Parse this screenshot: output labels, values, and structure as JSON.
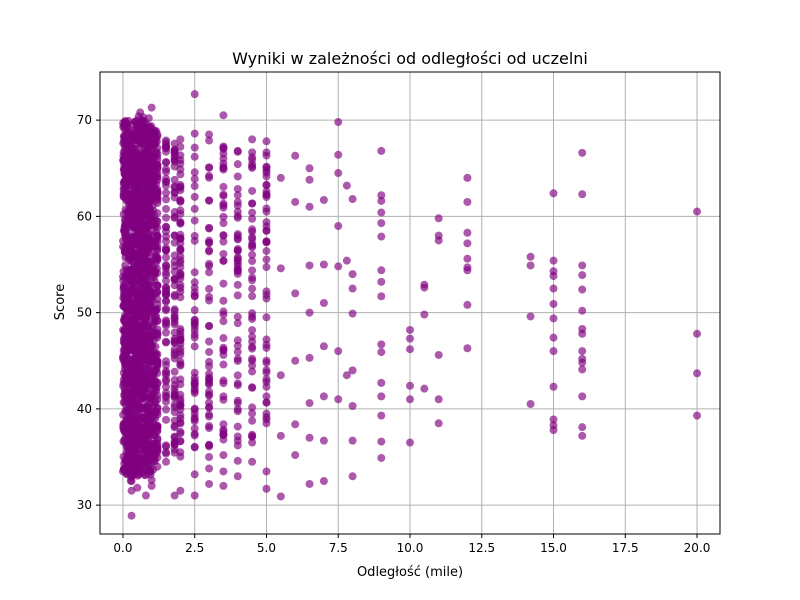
{
  "chart_data": {
    "type": "scatter",
    "title": "Wyniki w zależności od odległości od uczelni",
    "xlabel": "Odległość (mile)",
    "ylabel": "Score",
    "xlim": [
      -0.8,
      20.8
    ],
    "ylim": [
      27,
      75
    ],
    "xticks": [
      0.0,
      2.5,
      5.0,
      7.5,
      10.0,
      12.5,
      15.0,
      17.5,
      20.0
    ],
    "xtick_labels": [
      "0.0",
      "2.5",
      "5.0",
      "7.5",
      "10.0",
      "12.5",
      "15.0",
      "17.5",
      "20.0"
    ],
    "yticks": [
      30,
      40,
      50,
      60,
      70
    ],
    "ytick_labels": [
      "30",
      "40",
      "50",
      "60",
      "70"
    ],
    "grid": true,
    "point_color": "#800080",
    "point_opacity": 0.65,
    "note": "approx. 4700 observations; dense band at x 0-5 covering roughly 33-70, see series.dense_range",
    "series": [
      {
        "dense_range": [
          {
            "x": 0.0,
            "y_min": 33.5,
            "y_max": 70.0
          },
          {
            "x": 0.1,
            "y_min": 33.0,
            "y_max": 70.0
          },
          {
            "x": 0.2,
            "y_min": 32.5,
            "y_max": 69.5
          },
          {
            "x": 0.3,
            "y_min": 33.0,
            "y_max": 70.0
          },
          {
            "x": 0.4,
            "y_min": 33.5,
            "y_max": 70.0
          },
          {
            "x": 0.5,
            "y_min": 33.0,
            "y_max": 70.5
          },
          {
            "x": 0.6,
            "y_min": 33.5,
            "y_max": 70.0
          },
          {
            "x": 0.7,
            "y_min": 33.0,
            "y_max": 70.0
          },
          {
            "x": 0.8,
            "y_min": 33.5,
            "y_max": 69.5
          },
          {
            "x": 0.9,
            "y_min": 33.0,
            "y_max": 69.5
          },
          {
            "x": 1.0,
            "y_min": 33.5,
            "y_max": 69.0
          },
          {
            "x": 1.2,
            "y_min": 34.0,
            "y_max": 68.5
          },
          {
            "x": 1.5,
            "y_min": 34.5,
            "y_max": 68.0
          },
          {
            "x": 1.8,
            "y_min": 35.0,
            "y_max": 68.5
          },
          {
            "x": 2.0,
            "y_min": 35.0,
            "y_max": 68.0
          },
          {
            "x": 2.5,
            "y_min": 35.5,
            "y_max": 68.0
          },
          {
            "x": 3.0,
            "y_min": 36.0,
            "y_max": 68.0
          },
          {
            "x": 3.5,
            "y_min": 36.5,
            "y_max": 67.5
          },
          {
            "x": 4.0,
            "y_min": 36.0,
            "y_max": 67.0
          },
          {
            "x": 4.5,
            "y_min": 37.0,
            "y_max": 67.5
          },
          {
            "x": 5.0,
            "y_min": 38.5,
            "y_max": 67.5
          }
        ],
        "points": [
          [
            0.3,
            28.9
          ],
          [
            0.3,
            31.5
          ],
          [
            0.3,
            32.5
          ],
          [
            0.5,
            31.8
          ],
          [
            0.8,
            31.0
          ],
          [
            1.0,
            32.0
          ],
          [
            1.0,
            32.6
          ],
          [
            0.0,
            33.5
          ],
          [
            0.2,
            34.5
          ],
          [
            0.6,
            33.8
          ],
          [
            0.9,
            70.2
          ],
          [
            1.0,
            71.3
          ],
          [
            0.6,
            70.8
          ],
          [
            0.3,
            69.5
          ],
          [
            0.8,
            69.0
          ],
          [
            1.0,
            68.8
          ],
          [
            0.1,
            68.5
          ],
          [
            0.7,
            70.3
          ],
          [
            1.2,
            34.0
          ],
          [
            1.2,
            68.5
          ],
          [
            1.5,
            34.5
          ],
          [
            1.5,
            67.7
          ],
          [
            1.8,
            31.0
          ],
          [
            1.8,
            35.8
          ],
          [
            1.8,
            66.5
          ],
          [
            2.0,
            31.5
          ],
          [
            2.0,
            35.5
          ],
          [
            2.0,
            68.0
          ],
          [
            2.5,
            72.7
          ],
          [
            2.5,
            68.6
          ],
          [
            2.5,
            31.0
          ],
          [
            2.5,
            33.2
          ],
          [
            2.5,
            36.0
          ],
          [
            3.0,
            68.5
          ],
          [
            3.0,
            32.2
          ],
          [
            3.0,
            33.8
          ],
          [
            3.0,
            35.0
          ],
          [
            3.5,
            70.5
          ],
          [
            3.5,
            32.0
          ],
          [
            3.5,
            33.5
          ],
          [
            3.5,
            35.2
          ],
          [
            4.0,
            66.8
          ],
          [
            4.0,
            33.0
          ],
          [
            4.0,
            34.6
          ],
          [
            4.0,
            36.2
          ],
          [
            4.5,
            68.0
          ],
          [
            4.5,
            34.5
          ],
          [
            4.5,
            36.5
          ],
          [
            5.0,
            67.8
          ],
          [
            5.0,
            31.7
          ],
          [
            5.0,
            33.5
          ],
          [
            5.0,
            38.5
          ],
          [
            5.5,
            64.0
          ],
          [
            5.5,
            30.9
          ],
          [
            5.5,
            37.2
          ],
          [
            5.5,
            43.5
          ],
          [
            5.5,
            54.6
          ],
          [
            6.0,
            66.3
          ],
          [
            6.0,
            61.5
          ],
          [
            6.0,
            35.2
          ],
          [
            6.0,
            38.4
          ],
          [
            6.0,
            45.0
          ],
          [
            6.0,
            52.0
          ],
          [
            6.5,
            65.0
          ],
          [
            6.5,
            63.8
          ],
          [
            6.5,
            61.0
          ],
          [
            6.5,
            54.9
          ],
          [
            6.5,
            50.0
          ],
          [
            6.5,
            45.3
          ],
          [
            6.5,
            40.6
          ],
          [
            6.5,
            37.0
          ],
          [
            6.5,
            32.2
          ],
          [
            7.0,
            61.7
          ],
          [
            7.0,
            55.0
          ],
          [
            7.0,
            51.0
          ],
          [
            7.0,
            46.5
          ],
          [
            7.0,
            41.3
          ],
          [
            7.0,
            36.7
          ],
          [
            7.0,
            32.5
          ],
          [
            7.5,
            69.8
          ],
          [
            7.5,
            66.4
          ],
          [
            7.5,
            64.5
          ],
          [
            7.5,
            59.0
          ],
          [
            7.5,
            54.8
          ],
          [
            7.5,
            46.0
          ],
          [
            7.5,
            41.0
          ],
          [
            7.8,
            63.2
          ],
          [
            7.8,
            55.4
          ],
          [
            7.8,
            43.5
          ],
          [
            8.0,
            61.8
          ],
          [
            8.0,
            54.0
          ],
          [
            8.0,
            52.5
          ],
          [
            8.0,
            49.9
          ],
          [
            8.0,
            44.0
          ],
          [
            8.0,
            40.3
          ],
          [
            8.0,
            36.7
          ],
          [
            8.0,
            33.0
          ],
          [
            9.0,
            66.8
          ],
          [
            9.0,
            62.2
          ],
          [
            9.0,
            61.6
          ],
          [
            9.0,
            60.4
          ],
          [
            9.0,
            59.3
          ],
          [
            9.0,
            57.9
          ],
          [
            9.0,
            54.4
          ],
          [
            9.0,
            53.2
          ],
          [
            9.0,
            51.7
          ],
          [
            9.0,
            46.7
          ],
          [
            9.0,
            45.9
          ],
          [
            9.0,
            42.7
          ],
          [
            9.0,
            41.3
          ],
          [
            9.0,
            39.3
          ],
          [
            9.0,
            36.6
          ],
          [
            9.0,
            34.9
          ],
          [
            10.0,
            48.2
          ],
          [
            10.0,
            47.3
          ],
          [
            10.0,
            46.2
          ],
          [
            10.0,
            42.4
          ],
          [
            10.0,
            41.0
          ],
          [
            10.0,
            36.5
          ],
          [
            10.5,
            52.9
          ],
          [
            10.5,
            52.6
          ],
          [
            10.5,
            49.8
          ],
          [
            10.5,
            42.1
          ],
          [
            11.0,
            59.8
          ],
          [
            11.0,
            58.0
          ],
          [
            11.0,
            57.5
          ],
          [
            11.0,
            45.6
          ],
          [
            11.0,
            41.0
          ],
          [
            11.0,
            38.5
          ],
          [
            12.0,
            64.0
          ],
          [
            12.0,
            61.5
          ],
          [
            12.0,
            58.3
          ],
          [
            12.0,
            57.2
          ],
          [
            12.0,
            55.6
          ],
          [
            12.0,
            54.7
          ],
          [
            12.0,
            54.4
          ],
          [
            12.0,
            50.8
          ],
          [
            12.0,
            46.3
          ],
          [
            14.2,
            55.8
          ],
          [
            14.2,
            54.9
          ],
          [
            14.2,
            49.6
          ],
          [
            14.2,
            40.5
          ],
          [
            15.0,
            62.4
          ],
          [
            15.0,
            55.4
          ],
          [
            15.0,
            54.3
          ],
          [
            15.0,
            53.8
          ],
          [
            15.0,
            52.5
          ],
          [
            15.0,
            50.9
          ],
          [
            15.0,
            49.4
          ],
          [
            15.0,
            47.4
          ],
          [
            15.0,
            46.0
          ],
          [
            15.0,
            42.3
          ],
          [
            15.0,
            38.9
          ],
          [
            15.0,
            38.3
          ],
          [
            15.0,
            37.8
          ],
          [
            16.0,
            66.6
          ],
          [
            16.0,
            62.3
          ],
          [
            16.0,
            54.9
          ],
          [
            16.0,
            53.9
          ],
          [
            16.0,
            52.4
          ],
          [
            16.0,
            50.2
          ],
          [
            16.0,
            48.3
          ],
          [
            16.0,
            47.8
          ],
          [
            16.0,
            46.0
          ],
          [
            16.0,
            45.2
          ],
          [
            16.0,
            44.8
          ],
          [
            16.0,
            44.1
          ],
          [
            16.0,
            41.3
          ],
          [
            16.0,
            38.1
          ],
          [
            16.0,
            37.2
          ],
          [
            20.0,
            60.5
          ],
          [
            20.0,
            47.8
          ],
          [
            20.0,
            43.7
          ],
          [
            20.0,
            39.3
          ]
        ]
      }
    ]
  }
}
